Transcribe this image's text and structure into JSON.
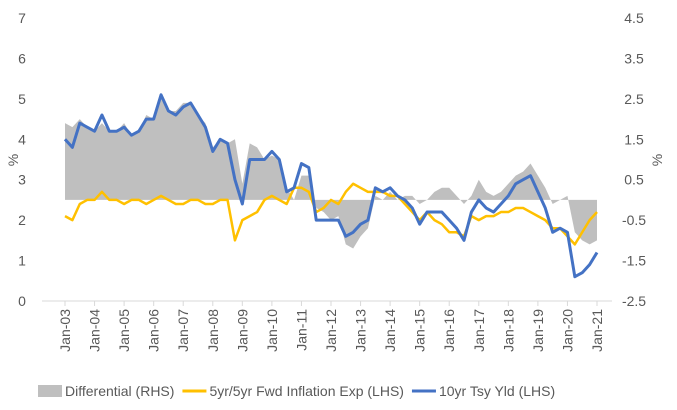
{
  "chart_data": {
    "type": "line",
    "categories": [
      "Jan-03",
      null,
      null,
      null,
      "Jan-04",
      null,
      null,
      null,
      "Jan-05",
      null,
      null,
      null,
      "Jan-06",
      null,
      null,
      null,
      "Jan-07",
      null,
      null,
      null,
      "Jan-08",
      null,
      null,
      null,
      "Jan-09",
      null,
      null,
      null,
      "Jan-10",
      null,
      null,
      null,
      "Jan-11",
      null,
      null,
      null,
      "Jan-12",
      null,
      null,
      null,
      "Jan-13",
      null,
      null,
      null,
      "Jan-14",
      null,
      null,
      null,
      "Jan-15",
      null,
      null,
      null,
      "Jan-16",
      null,
      null,
      null,
      "Jan-17",
      null,
      null,
      null,
      "Jan-18",
      null,
      null,
      null,
      "Jan-19",
      null,
      null,
      null,
      "Jan-20",
      null,
      null,
      null,
      "Jan-21"
    ],
    "ylabel": "%",
    "y2label": "%",
    "ylim": [
      0,
      7
    ],
    "yticks": [
      0,
      1,
      2,
      3,
      4,
      5,
      6,
      7
    ],
    "y2lim": [
      -2.5,
      4.5
    ],
    "y2ticks": [
      -2.5,
      -1.5,
      -0.5,
      0.5,
      1.5,
      2.5,
      3.5,
      4.5
    ],
    "series": [
      {
        "name": "Differential (RHS)",
        "type": "area",
        "axis": "y2",
        "color": "#bfbfbf",
        "values": [
          1.9,
          1.8,
          2.0,
          1.8,
          1.7,
          1.9,
          1.7,
          1.7,
          1.9,
          1.6,
          1.7,
          2.1,
          2.0,
          2.5,
          2.2,
          2.2,
          2.4,
          2.4,
          2.1,
          1.9,
          1.3,
          1.5,
          1.4,
          1.5,
          0.4,
          1.4,
          1.3,
          1.0,
          1.1,
          1.0,
          0.3,
          0.0,
          0.6,
          0.6,
          -0.2,
          -0.3,
          -0.5,
          -0.4,
          -1.1,
          -1.2,
          -0.9,
          -0.7,
          0.1,
          0.0,
          0.2,
          0.0,
          0.1,
          0.1,
          -0.1,
          0.0,
          0.2,
          0.3,
          0.3,
          0.1,
          -0.1,
          0.1,
          0.5,
          0.2,
          0.1,
          0.2,
          0.4,
          0.6,
          0.7,
          0.9,
          0.6,
          0.3,
          -0.1,
          0.0,
          0.1,
          -0.8,
          -1.0,
          -1.1,
          -1.0
        ]
      },
      {
        "name": "5yr/5yr Fwd Inflation Exp (LHS)",
        "type": "line",
        "color": "#ffc000",
        "values": [
          2.1,
          2.0,
          2.4,
          2.5,
          2.5,
          2.7,
          2.5,
          2.5,
          2.4,
          2.5,
          2.5,
          2.4,
          2.5,
          2.6,
          2.5,
          2.4,
          2.4,
          2.5,
          2.5,
          2.4,
          2.4,
          2.5,
          2.5,
          1.5,
          2.0,
          2.1,
          2.2,
          2.5,
          2.6,
          2.5,
          2.4,
          2.8,
          2.8,
          2.7,
          2.2,
          2.3,
          2.5,
          2.4,
          2.7,
          2.9,
          2.8,
          2.7,
          2.7,
          2.7,
          2.6,
          2.6,
          2.4,
          2.2,
          2.0,
          2.2,
          2.0,
          1.9,
          1.7,
          1.7,
          1.6,
          2.1,
          2.0,
          2.1,
          2.1,
          2.2,
          2.2,
          2.3,
          2.3,
          2.2,
          2.1,
          2.0,
          1.8,
          1.8,
          1.6,
          1.4,
          1.7,
          2.0,
          2.2
        ]
      },
      {
        "name": "10yr Tsy Yld (LHS)",
        "type": "line",
        "color": "#4472c4",
        "values": [
          4.0,
          3.8,
          4.4,
          4.3,
          4.2,
          4.6,
          4.2,
          4.2,
          4.3,
          4.1,
          4.2,
          4.5,
          4.5,
          5.1,
          4.7,
          4.6,
          4.8,
          4.9,
          4.6,
          4.3,
          3.7,
          4.0,
          3.9,
          3.0,
          2.4,
          3.5,
          3.5,
          3.5,
          3.7,
          3.5,
          2.7,
          2.8,
          3.4,
          3.3,
          2.0,
          2.0,
          2.0,
          2.0,
          1.6,
          1.7,
          1.9,
          2.0,
          2.8,
          2.7,
          2.8,
          2.6,
          2.5,
          2.3,
          1.9,
          2.2,
          2.2,
          2.2,
          2.0,
          1.8,
          1.5,
          2.2,
          2.5,
          2.3,
          2.2,
          2.4,
          2.6,
          2.9,
          3.0,
          3.1,
          2.7,
          2.3,
          1.7,
          1.8,
          1.7,
          0.6,
          0.7,
          0.9,
          1.2
        ]
      }
    ]
  }
}
